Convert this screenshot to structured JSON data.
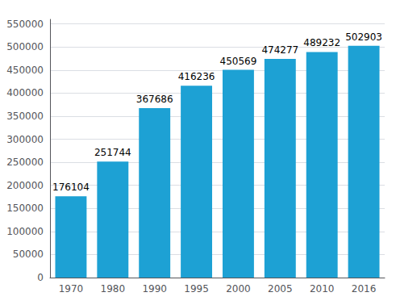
{
  "chart_data": {
    "type": "bar",
    "categories": [
      "1970",
      "1980",
      "1990",
      "1995",
      "2000",
      "2005",
      "2010",
      "2016"
    ],
    "values": [
      176104,
      251744,
      367686,
      416236,
      450569,
      474277,
      489232,
      502903
    ],
    "color": "#1da1d4",
    "ylim": [
      0,
      560000
    ],
    "yticks": [
      0,
      50000,
      100000,
      150000,
      200000,
      250000,
      300000,
      350000,
      400000,
      450000,
      500000,
      550000
    ],
    "grid": true,
    "data_labels": true
  }
}
